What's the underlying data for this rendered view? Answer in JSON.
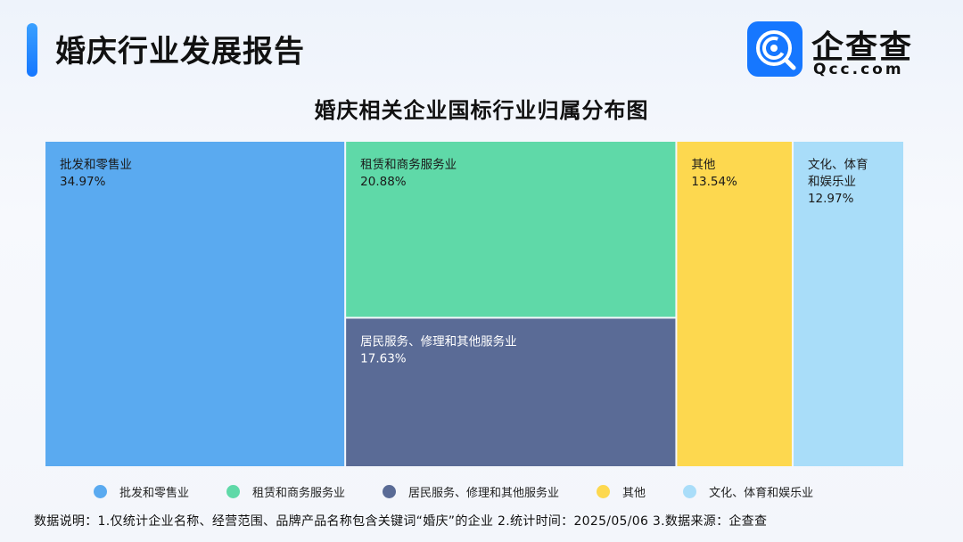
{
  "header": {
    "title": "婚庆行业发展报告",
    "logo_name": "企查查",
    "logo_domain": "Qcc.com"
  },
  "colors": {
    "accent": "#1677ff",
    "series": [
      "#5aaaf0",
      "#5fd9a8",
      "#5a6b96",
      "#fdd84f",
      "#a9ddf9"
    ]
  },
  "chart_data": {
    "type": "treemap",
    "title": "婚庆相关企业国标行业归属分布图",
    "items": [
      {
        "name": "批发和零售业",
        "label_lines": [
          "批发和零售业"
        ],
        "value": 34.97,
        "value_label": "34.97%"
      },
      {
        "name": "租赁和商务服务业",
        "label_lines": [
          "租赁和商务服务业"
        ],
        "value": 20.88,
        "value_label": "20.88%"
      },
      {
        "name": "居民服务、修理和其他服务业",
        "label_lines": [
          "居民服务、修理和其他服务业"
        ],
        "value": 17.63,
        "value_label": "17.63%"
      },
      {
        "name": "其他",
        "label_lines": [
          "其他"
        ],
        "value": 13.54,
        "value_label": "13.54%"
      },
      {
        "name": "文化、体育和娱乐业",
        "label_lines": [
          "文化、体育",
          "和娱乐业"
        ],
        "value": 12.97,
        "value_label": "12.97%"
      }
    ],
    "legend": [
      "批发和零售业",
      "租赁和商务服务业",
      "居民服务、修理和其他服务业",
      "其他",
      "文化、体育和娱乐业"
    ]
  },
  "footnote": "数据说明：1.仅统计企业名称、经营范围、品牌产品名称包含关键词“婚庆”的企业  2.统计时间：2025/05/06   3.数据来源：企查查"
}
